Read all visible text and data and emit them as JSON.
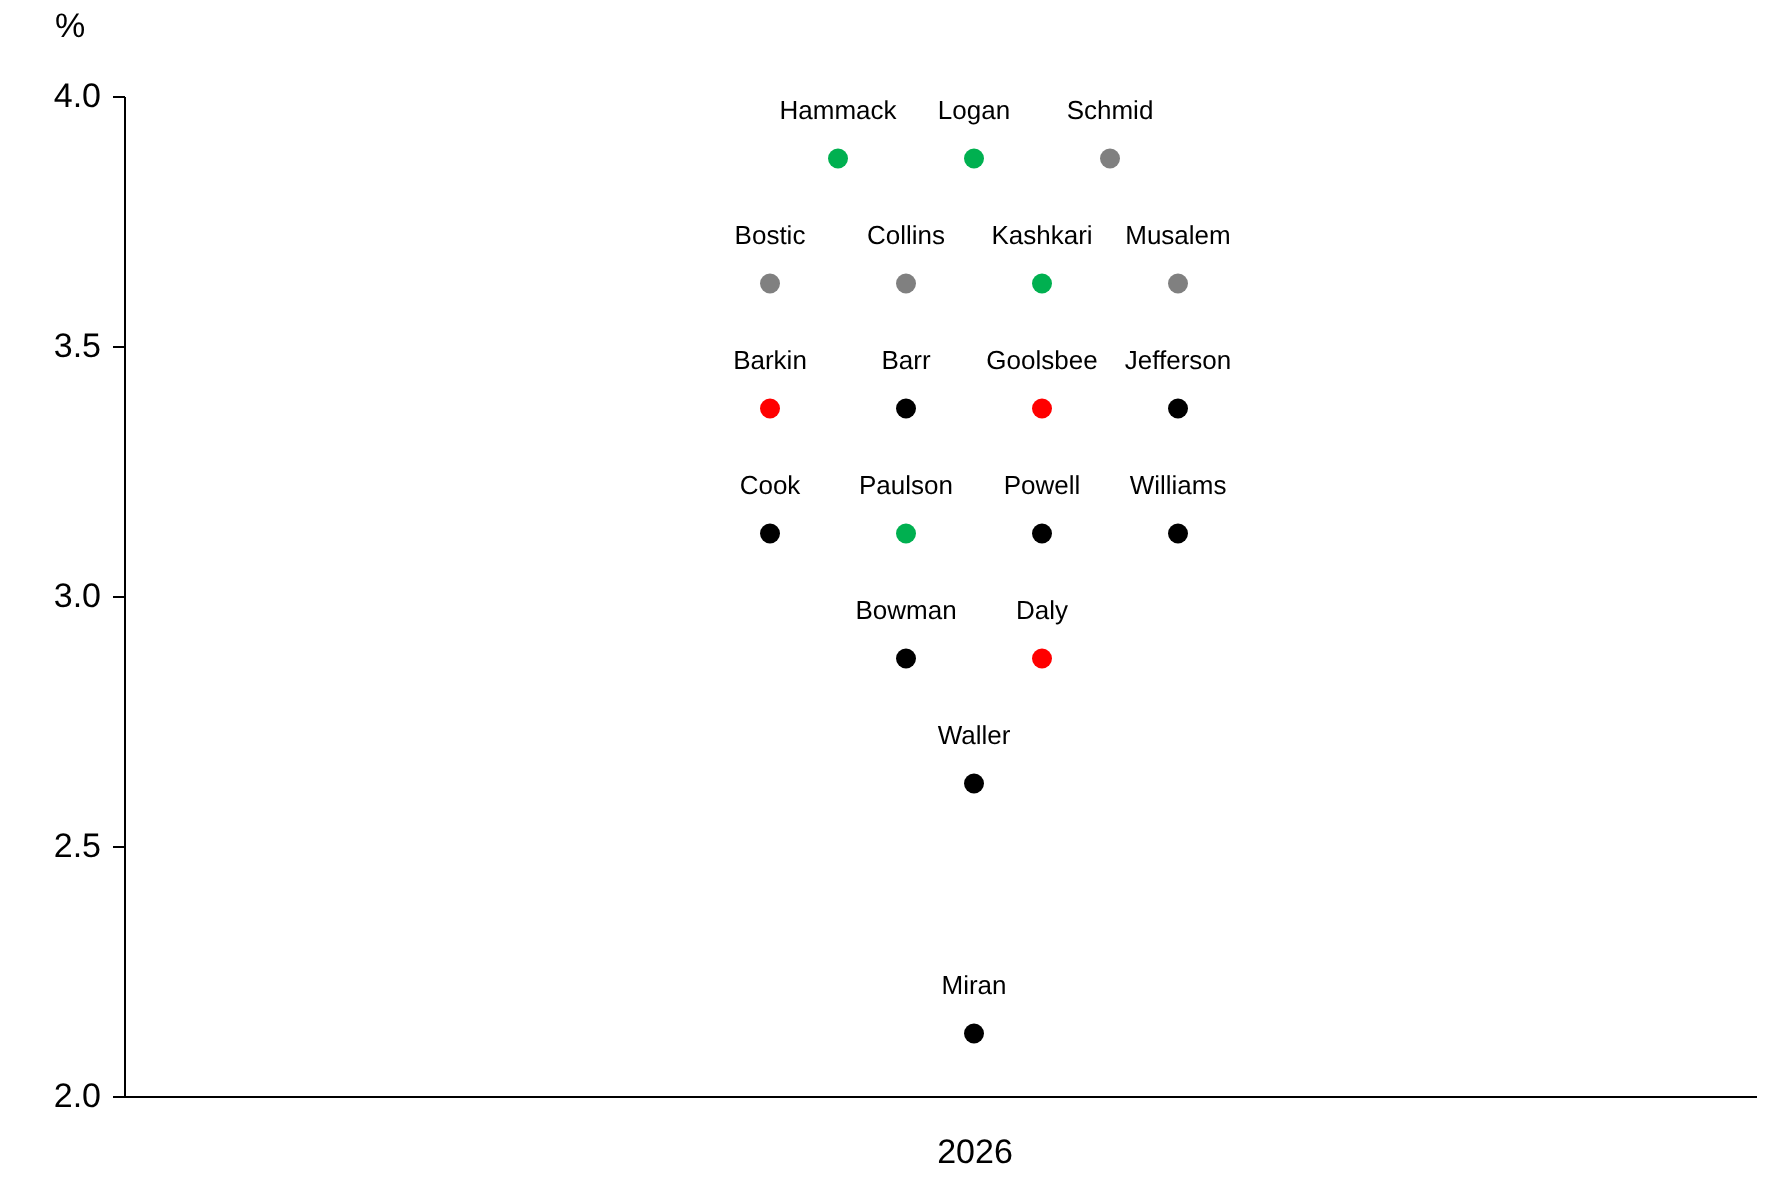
{
  "chart_data": {
    "type": "scatter",
    "ylabel": "%",
    "marker": "circle",
    "categories": [
      null,
      null,
      null,
      null,
      null,
      null,
      null,
      null,
      null,
      null,
      null,
      null,
      "2026",
      null,
      null,
      null,
      null,
      null,
      null,
      null,
      null,
      null,
      null,
      null
    ],
    "ylim": [
      2,
      4
    ],
    "yticks": [
      {
        "value": 2,
        "label": "2.0"
      },
      {
        "value": 2.5,
        "label": "2.5"
      },
      {
        "value": 3,
        "label": "3.0"
      },
      {
        "value": 3.5,
        "label": "3.5"
      },
      {
        "value": 4,
        "label": "4.0"
      }
    ],
    "grid": false,
    "series": [
      {
        "values": [
          null,
          null,
          null,
          null,
          null,
          null,
          null,
          null,
          null,
          null,
          3.875,
          null,
          3.875,
          null,
          3.875,
          null,
          null,
          null,
          null,
          null,
          null,
          null,
          null,
          null
        ],
        "colors": [
          null,
          null,
          null,
          null,
          null,
          null,
          null,
          null,
          null,
          null,
          "#00b050",
          null,
          "#00b050",
          null,
          "#808080",
          null,
          null,
          null,
          null,
          null,
          null,
          null,
          null,
          null
        ],
        "value_labels": [
          null,
          null,
          null,
          null,
          null,
          null,
          null,
          null,
          null,
          null,
          "Hammack",
          null,
          "Logan",
          null,
          "Schmid",
          null,
          null,
          null,
          null,
          null,
          null,
          null,
          null,
          null
        ]
      },
      {
        "values": [
          null,
          null,
          null,
          null,
          null,
          null,
          null,
          null,
          null,
          3.625,
          null,
          3.625,
          null,
          3.625,
          null,
          3.625,
          null,
          null,
          null,
          null,
          null,
          null,
          null,
          null
        ],
        "colors": [
          null,
          null,
          null,
          null,
          null,
          null,
          null,
          null,
          null,
          "#808080",
          null,
          "#808080",
          null,
          "#00b050",
          null,
          "#808080",
          null,
          null,
          null,
          null,
          null,
          null,
          null,
          null
        ],
        "value_labels": [
          null,
          null,
          null,
          null,
          null,
          null,
          null,
          null,
          null,
          "Bostic",
          null,
          "Collins",
          null,
          "Kashkari",
          null,
          "Musalem",
          null,
          null,
          null,
          null,
          null,
          null,
          null,
          null
        ]
      },
      {
        "values": [
          null,
          null,
          null,
          null,
          null,
          null,
          null,
          null,
          null,
          3.375,
          null,
          3.375,
          null,
          3.375,
          null,
          3.375,
          null,
          null,
          null,
          null,
          null,
          null,
          null,
          null
        ],
        "colors": [
          null,
          null,
          null,
          null,
          null,
          null,
          null,
          null,
          null,
          "#ff0000",
          null,
          "#000000",
          null,
          "#ff0000",
          null,
          "#000000",
          null,
          null,
          null,
          null,
          null,
          null,
          null,
          null
        ],
        "value_labels": [
          null,
          null,
          null,
          null,
          null,
          null,
          null,
          null,
          null,
          "Barkin",
          null,
          "Barr",
          null,
          "Goolsbee",
          null,
          "Jefferson",
          null,
          null,
          null,
          null,
          null,
          null,
          null,
          null
        ]
      },
      {
        "values": [
          null,
          null,
          null,
          null,
          null,
          null,
          null,
          null,
          null,
          3.125,
          null,
          3.125,
          null,
          3.125,
          null,
          3.125,
          null,
          null,
          null,
          null,
          null,
          null,
          null,
          null
        ],
        "colors": [
          null,
          null,
          null,
          null,
          null,
          null,
          null,
          null,
          null,
          "#000000",
          null,
          "#00b050",
          null,
          "#000000",
          null,
          "#000000",
          null,
          null,
          null,
          null,
          null,
          null,
          null,
          null
        ],
        "value_labels": [
          null,
          null,
          null,
          null,
          null,
          null,
          null,
          null,
          null,
          "Cook",
          null,
          "Paulson",
          null,
          "Powell",
          null,
          "Williams",
          null,
          null,
          null,
          null,
          null,
          null,
          null,
          null
        ]
      },
      {
        "values": [
          null,
          null,
          null,
          null,
          null,
          null,
          null,
          null,
          null,
          null,
          null,
          2.875,
          null,
          2.875,
          null,
          null,
          null,
          null,
          null,
          null,
          null,
          null,
          null,
          null
        ],
        "colors": [
          null,
          null,
          null,
          null,
          null,
          null,
          null,
          null,
          null,
          null,
          null,
          "#000000",
          null,
          "#ff0000",
          null,
          null,
          null,
          null,
          null,
          null,
          null,
          null,
          null,
          null
        ],
        "value_labels": [
          null,
          null,
          null,
          null,
          null,
          null,
          null,
          null,
          null,
          null,
          null,
          "Bowman",
          null,
          "Daly",
          null,
          null,
          null,
          null,
          null,
          null,
          null,
          null,
          null,
          null
        ]
      },
      {
        "values": [
          null,
          null,
          null,
          null,
          null,
          null,
          null,
          null,
          null,
          null,
          null,
          null,
          2.625,
          null,
          null,
          null,
          null,
          null,
          null,
          null,
          null,
          null,
          null,
          null
        ],
        "colors": [
          null,
          null,
          null,
          null,
          null,
          null,
          null,
          null,
          null,
          null,
          null,
          null,
          "#000000",
          null,
          null,
          null,
          null,
          null,
          null,
          null,
          null,
          null,
          null,
          null
        ],
        "value_labels": [
          null,
          null,
          null,
          null,
          null,
          null,
          null,
          null,
          null,
          null,
          null,
          null,
          "Waller",
          null,
          null,
          null,
          null,
          null,
          null,
          null,
          null,
          null,
          null,
          null
        ]
      },
      {
        "values": [
          null,
          null,
          null,
          null,
          null,
          null,
          null,
          null,
          null,
          null,
          null,
          null,
          2.125,
          null,
          null,
          null,
          null,
          null,
          null,
          null,
          null,
          null,
          null,
          null
        ],
        "colors": [
          null,
          null,
          null,
          null,
          null,
          null,
          null,
          null,
          null,
          null,
          null,
          null,
          "#000000",
          null,
          null,
          null,
          null,
          null,
          null,
          null,
          null,
          null,
          null,
          null
        ],
        "value_labels": [
          null,
          null,
          null,
          null,
          null,
          null,
          null,
          null,
          null,
          null,
          null,
          null,
          "Miran",
          null,
          null,
          null,
          null,
          null,
          null,
          null,
          null,
          null,
          null,
          null
        ]
      }
    ]
  }
}
